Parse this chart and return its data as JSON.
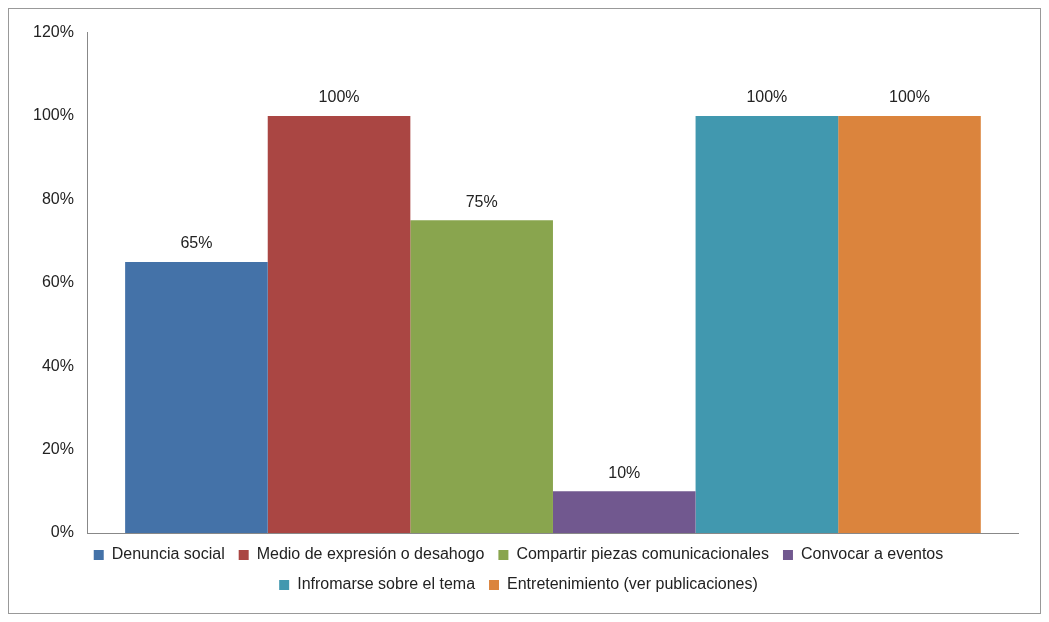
{
  "chart_data": {
    "type": "bar",
    "categories": [
      null
    ],
    "series": [
      {
        "name": "Denuncia social",
        "color": "#4472a8",
        "values": [
          65
        ],
        "value_labels": [
          "65%"
        ]
      },
      {
        "name": "Medio de expresión o desahogo",
        "color": "#aa4643",
        "values": [
          100
        ],
        "value_labels": [
          "100%"
        ]
      },
      {
        "name": "Compartir piezas comunicacionales",
        "color": "#89a54e",
        "values": [
          75
        ],
        "value_labels": [
          "75%"
        ]
      },
      {
        "name": "Convocar a eventos",
        "color": "#71588f",
        "values": [
          10
        ],
        "value_labels": [
          "10%"
        ]
      },
      {
        "name": "Infromarse sobre el tema",
        "color": "#4198af",
        "values": [
          100
        ],
        "value_labels": [
          "100%"
        ]
      },
      {
        "name": "Entretenimiento (ver publicaciones)",
        "color": "#db843d",
        "values": [
          100
        ],
        "value_labels": [
          "100%"
        ]
      }
    ],
    "ylim": [
      0,
      120
    ],
    "yticks": [
      {
        "value": 0,
        "label": "0%"
      },
      {
        "value": 20,
        "label": "20%"
      },
      {
        "value": 40,
        "label": "40%"
      },
      {
        "value": 60,
        "label": "60%"
      },
      {
        "value": 80,
        "label": "80%"
      },
      {
        "value": 100,
        "label": "100%"
      },
      {
        "value": 120,
        "label": "120%"
      }
    ],
    "grid": false,
    "legend": "bottom"
  }
}
